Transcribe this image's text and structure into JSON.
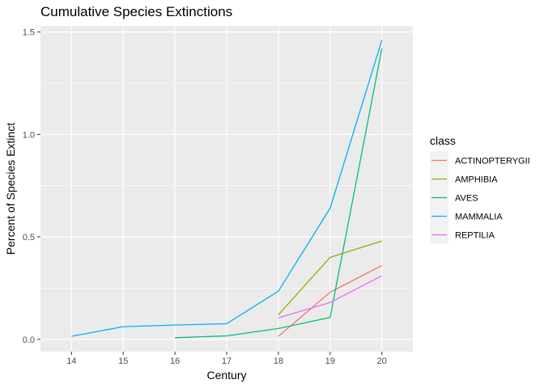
{
  "chart_data": {
    "type": "line",
    "title": "Cumulative Species Extinctions",
    "xlabel": "Century",
    "ylabel": "Percent of Species Extinct",
    "x_ticks": [
      14,
      15,
      16,
      17,
      18,
      19,
      20
    ],
    "y_ticks": [
      "0.0",
      "0.5",
      "1.0",
      "1.5"
    ],
    "xlim": [
      13.4,
      20.6
    ],
    "ylim": [
      -0.06,
      1.53
    ],
    "grid": true,
    "legend": {
      "title": "class",
      "position": "right"
    },
    "series": [
      {
        "name": "ACTINOPTERYGII",
        "color": "#F8766D",
        "x": [
          18,
          19,
          20
        ],
        "y": [
          0.015,
          0.23,
          0.36
        ]
      },
      {
        "name": "AMPHIBIA",
        "color": "#A3A500",
        "x": [
          18,
          19,
          20
        ],
        "y": [
          0.12,
          0.4,
          0.48
        ]
      },
      {
        "name": "AVES",
        "color": "#00BF7D",
        "x": [
          16,
          17,
          18,
          19,
          20
        ],
        "y": [
          0.008,
          0.017,
          0.053,
          0.107,
          1.42
        ]
      },
      {
        "name": "MAMMALIA",
        "color": "#00B0F6",
        "x": [
          14,
          15,
          16,
          17,
          18,
          19,
          20
        ],
        "y": [
          0.015,
          0.062,
          0.07,
          0.076,
          0.235,
          0.64,
          1.46
        ]
      },
      {
        "name": "REPTILIA",
        "color": "#E76BF3",
        "x": [
          18,
          19,
          20
        ],
        "y": [
          0.105,
          0.18,
          0.31
        ]
      }
    ]
  }
}
